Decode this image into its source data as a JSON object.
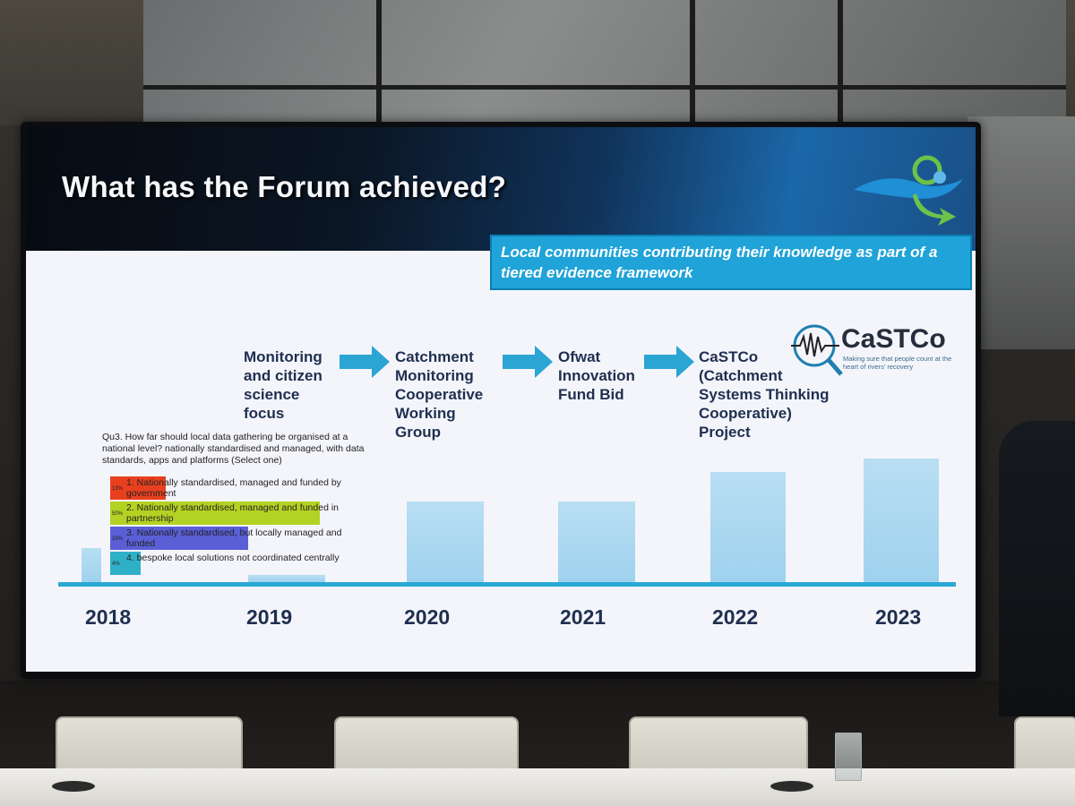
{
  "slide": {
    "title": "What has the Forum achieved?",
    "banner": "Local communities contributing their knowledge as part of a tiered evidence framework",
    "steps": [
      "Monitoring and citizen science focus",
      "Catchment Monitoring Cooperative Working Group",
      "Ofwat Innovation Fund Bid",
      "CaSTCo (Catchment Systems Thinking Cooperative) Project"
    ],
    "castco": {
      "name": "CaSTCo",
      "tagline": "Making sure that people count at the heart of rivers' recovery"
    },
    "years": [
      "2018",
      "2019",
      "2020",
      "2021",
      "2022",
      "2023"
    ],
    "poll": {
      "question": "Qu3. How far should local data gathering be organised at a national level? nationally standardised and managed, with data standards, apps and platforms (Select one)",
      "options": [
        {
          "label": "1.  Nationally standardised, managed and funded by government",
          "pct": "13%",
          "color": "#e8401f"
        },
        {
          "label": "2.  Nationally standardised, managed and funded in partnership",
          "pct": "50%",
          "color": "#b4d223"
        },
        {
          "label": "3.  Nationally standardised, but locally managed and funded",
          "pct": "33%",
          "color": "#5a5fd6"
        },
        {
          "label": "4.  bespoke local solutions not coordinated centrally",
          "pct": "4%",
          "color": "#2fb0c9"
        }
      ]
    },
    "colors": {
      "accent": "#1fa3d8",
      "header_dark": "#0b1624",
      "text": "#1f2f4f"
    }
  }
}
